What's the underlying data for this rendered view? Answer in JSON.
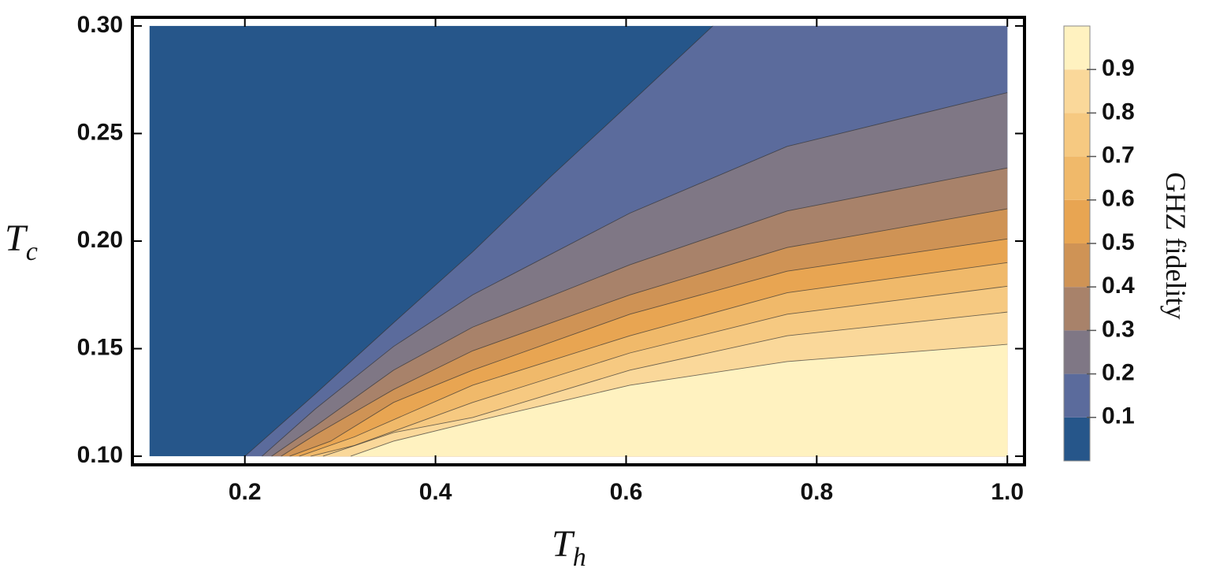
{
  "chart_data": {
    "type": "contour",
    "x_label": {
      "symbol": "T",
      "subscript": "h"
    },
    "y_label": {
      "symbol": "T",
      "subscript": "c"
    },
    "xlim": [
      0.082,
      1.018
    ],
    "ylim": [
      0.096,
      0.304
    ],
    "plot_range": {
      "x": [
        0.1,
        1.0
      ],
      "y": [
        0.1,
        0.3
      ]
    },
    "xticks": [
      0.2,
      0.4,
      0.6,
      0.8,
      {
        "value": 1.0,
        "label": "1.0"
      }
    ],
    "yticks": [
      {
        "value": 0.1,
        "label": "0.10"
      },
      0.15,
      {
        "value": 0.2,
        "label": "0.20"
      },
      0.25,
      {
        "value": 0.3,
        "label": "0.30"
      }
    ],
    "band_colors": [
      "#26568a",
      "#5b6b9c",
      "#7f7785",
      "#a8826a",
      "#cf9355",
      "#e8a552",
      "#f0b96a",
      "#f6c981",
      "#fad89a",
      "#fff2c0"
    ],
    "contours": [
      {
        "level": 0.1,
        "x": [
          0.2,
          0.274,
          0.356,
          0.439,
          0.521,
          0.604,
          0.691
        ],
        "y": [
          0.1,
          0.129,
          0.162,
          0.195,
          0.23,
          0.264,
          0.3
        ]
      },
      {
        "level": 0.2,
        "x": [
          0.218,
          0.274,
          0.356,
          0.439,
          0.604,
          0.769,
          1.0
        ],
        "y": [
          0.1,
          0.122,
          0.151,
          0.175,
          0.213,
          0.244,
          0.269
        ]
      },
      {
        "level": 0.3,
        "x": [
          0.228,
          0.274,
          0.356,
          0.439,
          0.604,
          0.769,
          1.0
        ],
        "y": [
          0.1,
          0.114,
          0.14,
          0.16,
          0.189,
          0.214,
          0.234
        ]
      },
      {
        "level": 0.4,
        "x": [
          0.238,
          0.274,
          0.356,
          0.439,
          0.604,
          0.769,
          1.0
        ],
        "y": [
          0.1,
          0.11,
          0.131,
          0.149,
          0.175,
          0.197,
          0.215
        ]
      },
      {
        "level": 0.5,
        "x": [
          0.247,
          0.29,
          0.356,
          0.439,
          0.604,
          0.769,
          1.0
        ],
        "y": [
          0.1,
          0.107,
          0.125,
          0.14,
          0.166,
          0.186,
          0.201
        ]
      },
      {
        "level": 0.6,
        "x": [
          0.257,
          0.315,
          0.439,
          0.604,
          0.769,
          1.0
        ],
        "y": [
          0.1,
          0.109,
          0.133,
          0.156,
          0.176,
          0.19
        ]
      },
      {
        "level": 0.7,
        "x": [
          0.269,
          0.315,
          0.439,
          0.604,
          0.769,
          1.0
        ],
        "y": [
          0.1,
          0.105,
          0.125,
          0.148,
          0.166,
          0.179
        ]
      },
      {
        "level": 0.8,
        "x": [
          0.282,
          0.356,
          0.439,
          0.604,
          0.769,
          1.0
        ],
        "y": [
          0.1,
          0.111,
          0.118,
          0.14,
          0.156,
          0.167
        ]
      },
      {
        "level": 0.9,
        "x": [
          0.311,
          0.356,
          0.439,
          0.604,
          0.769,
          1.0
        ],
        "y": [
          0.1,
          0.107,
          0.116,
          0.133,
          0.144,
          0.152
        ]
      }
    ],
    "colorbar": {
      "label": "GHZ fidelity",
      "lim": [
        0,
        1
      ],
      "ticks": [
        0.1,
        0.2,
        0.3,
        0.4,
        0.5,
        0.6,
        0.7,
        0.8,
        0.9
      ]
    }
  }
}
